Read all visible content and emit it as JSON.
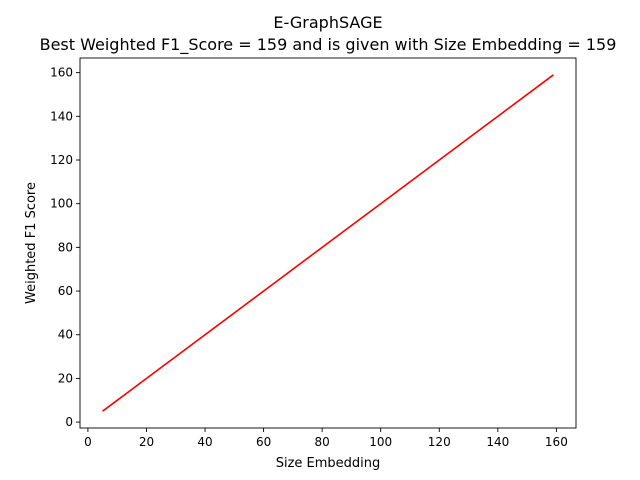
{
  "chart_data": {
    "type": "line",
    "title": "E-GraphSAGE",
    "subtitle": "Best Weighted F1_Score = 159 and is given with Size Embedding = 159",
    "xlabel": "Size Embedding",
    "ylabel": "Weighted F1 Score",
    "xlim": [
      -2.7,
      166.7
    ],
    "ylim": [
      -2.7,
      166.7
    ],
    "xticks": [
      0,
      20,
      40,
      60,
      80,
      100,
      120,
      140,
      160
    ],
    "yticks": [
      0,
      20,
      40,
      60,
      80,
      100,
      120,
      140,
      160
    ],
    "grid": false,
    "series": [
      {
        "color": "#ff0000",
        "x": [
          5,
          159
        ],
        "y": [
          5,
          159
        ]
      }
    ]
  }
}
